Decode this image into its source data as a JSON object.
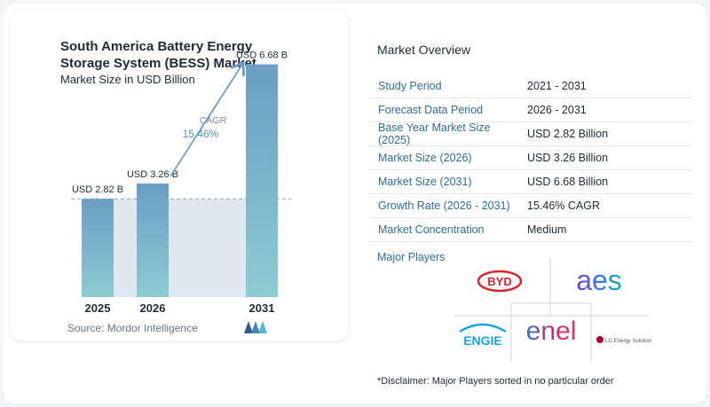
{
  "chart_data": {
    "type": "bar",
    "title": "South America Battery Energy Storage System (BESS) Market",
    "subtitle": "Market Size in USD Billion",
    "categories": [
      "2025",
      "2026",
      "2031"
    ],
    "values": [
      2.82,
      3.26,
      6.68
    ],
    "value_labels": [
      "USD 2.82 B",
      "USD 3.26 B",
      "USD 6.68 B"
    ],
    "ylim": [
      0,
      7
    ],
    "cagr_label": "CAGR",
    "cagr_value": "15.46%",
    "colors": {
      "bar_top": "#6a9ec4",
      "bar_bottom": "#8ecbd3",
      "shade": "#dde8f1",
      "arrow": "#6a9ec4",
      "reference_line": "#9aa7b3"
    }
  },
  "source": "Source:  Mordor Intelligence",
  "overview": {
    "title": "Market Overview",
    "rows": [
      {
        "label": "Study Period",
        "value": "2021 - 2031"
      },
      {
        "label": "Forecast Data Period",
        "value": "2026 - 2031"
      },
      {
        "label": "Base Year Market Size (2025)",
        "value": "USD 2.82 Billion"
      },
      {
        "label": "Market Size (2026)",
        "value": "USD 3.26 Billion"
      },
      {
        "label": "Market Size (2031)",
        "value": "USD 6.68 Billion"
      },
      {
        "label": "Growth Rate (2026 - 2031)",
        "value": "15.46% CAGR"
      },
      {
        "label": "Market Concentration",
        "value": "Medium"
      }
    ]
  },
  "players": {
    "title": "Major Players",
    "logos": [
      "BYD",
      "aes",
      "ENGIE",
      "enel",
      "LG Energy Solution"
    ]
  },
  "disclaimer": "*Disclaimer: Major Players sorted in no particular order"
}
